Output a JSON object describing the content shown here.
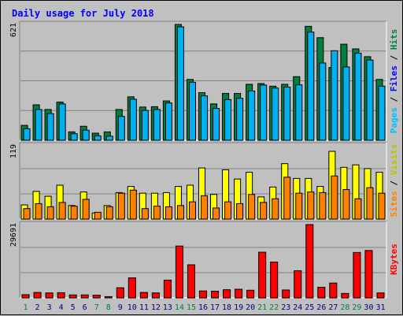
{
  "chart_data": {
    "type": "bar",
    "title": "Daily usage for July 2018",
    "categories": [
      "1",
      "2",
      "3",
      "4",
      "5",
      "6",
      "7",
      "8",
      "9",
      "10",
      "11",
      "12",
      "13",
      "14",
      "15",
      "16",
      "17",
      "18",
      "19",
      "20",
      "21",
      "22",
      "23",
      "24",
      "25",
      "26",
      "27",
      "28",
      "29",
      "30",
      "31"
    ],
    "weekend_days": [
      "1",
      "7",
      "8",
      "14",
      "15",
      "21",
      "22",
      "28",
      "29"
    ],
    "panels": [
      {
        "id": "hits-files-pages",
        "ymax_label": "621",
        "ymax": 621,
        "series": [
          {
            "name": "Hits",
            "color": "#008040",
            "values": [
              80,
              190,
              165,
              205,
              45,
              75,
              38,
              45,
              165,
              233,
              178,
              180,
              211,
              621,
              326,
              255,
              195,
              251,
              251,
              300,
              304,
              290,
              300,
              341,
              611,
              550,
              390,
              515,
              490,
              448,
              326
            ]
          },
          {
            "name": "Files",
            "color": "#00b0f0",
            "values": [
              62,
              165,
              143,
              195,
              35,
              54,
              24,
              22,
              128,
              220,
              160,
              165,
              200,
              608,
              311,
              238,
              171,
              218,
              225,
              264,
              296,
              280,
              285,
              297,
              580,
              414,
              480,
              393,
              467,
              430,
              290
            ]
          }
        ]
      },
      {
        "id": "visits-sites",
        "ymax_label": "119",
        "ymax": 119,
        "series": [
          {
            "name": "Visits",
            "color": "#ffff00",
            "values": [
              23,
              45,
              37,
              55,
              22,
              44,
              10,
              22,
              43,
              53,
              42,
              42,
              43,
              53,
              55,
              83,
              40,
              80,
              65,
              76,
              36,
              52,
              90,
              66,
              66,
              53,
              110,
              84,
              88,
              82,
              76
            ]
          },
          {
            "name": "Sites",
            "color": "#ff8000",
            "values": [
              17,
              25,
              20,
              27,
              21,
              32,
              11,
              20,
              42,
              47,
              17,
              21,
              20,
              22,
              28,
              38,
              18,
              28,
              25,
              40,
              27,
              33,
              68,
              42,
              44,
              43,
              70,
              48,
              33,
              51,
              42
            ]
          }
        ]
      },
      {
        "id": "kbytes",
        "ymax_label": "29691",
        "ymax": 29691,
        "series": [
          {
            "name": "KBytes",
            "color": "#ff0000",
            "values": [
              1300,
              2200,
              2000,
              2100,
              1200,
              1200,
              1100,
              500,
              4100,
              8100,
              2200,
              2000,
              7200,
              21000,
              13400,
              2800,
              2700,
              3300,
              3500,
              3100,
              18500,
              14500,
              3200,
              11000,
              29691,
              4300,
              6000,
              1800,
              18400,
              19200,
              2000
            ]
          }
        ]
      }
    ],
    "legend_right": {
      "top": [
        "Pages",
        "Files",
        "Hits"
      ],
      "middle": [
        "Sites",
        "Visits"
      ],
      "bottom": [
        "KBytes"
      ]
    },
    "legend_colors": {
      "Pages": "#00c0ff",
      "Files": "#0000ff",
      "Hits": "#008040",
      "Sites": "#ff8000",
      "Visits": "#c0c000",
      "KBytes": "#ff0000"
    },
    "separator": "/",
    "title_color": "#0000ff",
    "weekday_label_color": "#000080",
    "weekend_label_color": "#008040",
    "grid": true
  }
}
